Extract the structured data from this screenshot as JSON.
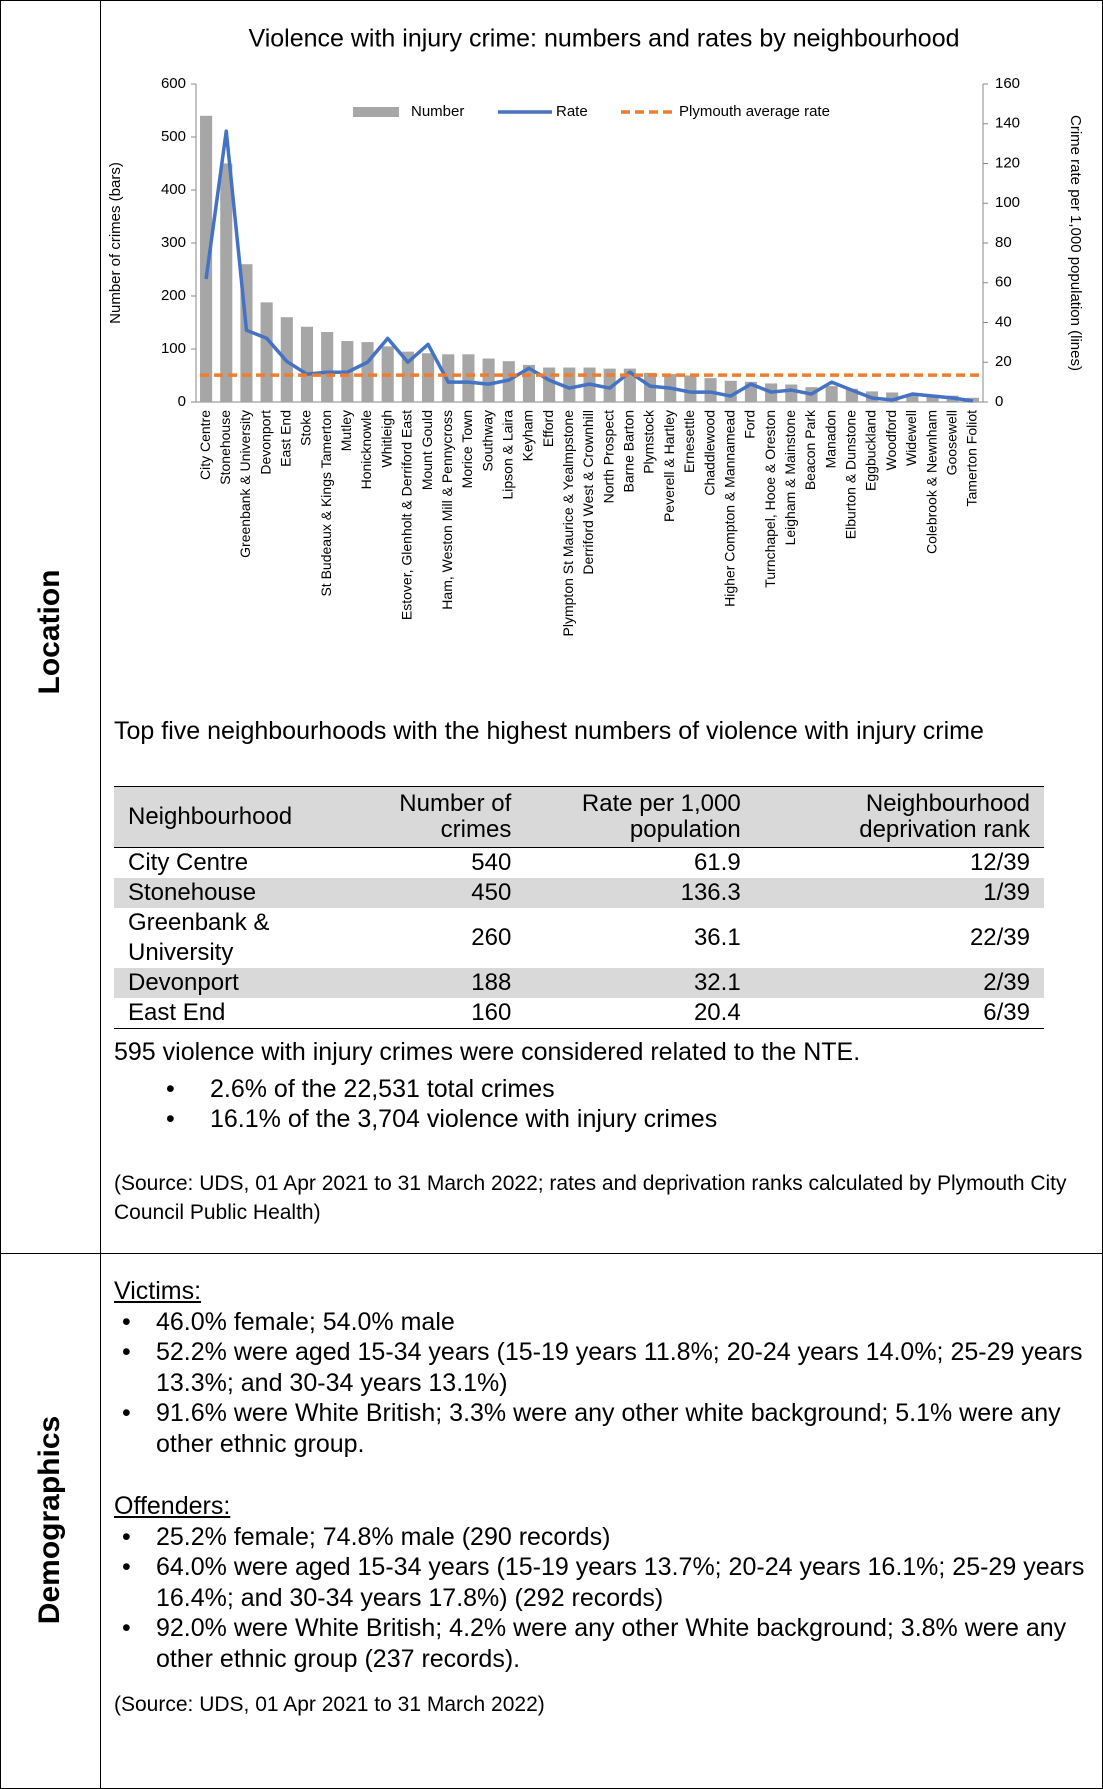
{
  "location": {
    "label": "Location",
    "table_title": "Top five neighbourhoods with the highest numbers of violence with injury crime",
    "table": {
      "header": [
        "Neighbourhood",
        "Number of crimes",
        "Rate per 1,000 population",
        "Neighbourhood deprivation rank"
      ],
      "rows": [
        [
          "City Centre",
          540,
          61.9,
          "12/39"
        ],
        [
          "Stonehouse",
          450,
          136.3,
          "1/39"
        ],
        [
          "Greenbank & University",
          260,
          36.1,
          "22/39"
        ],
        [
          "Devonport",
          188,
          32.1,
          "2/39"
        ],
        [
          "East End",
          160,
          20.4,
          "6/39"
        ]
      ]
    },
    "nte": {
      "text": "595 violence with injury crimes were considered related to the NTE.",
      "bullets": [
        "2.6% of the 22,531 total crimes",
        "16.1% of the 3,704 violence with injury crimes"
      ]
    },
    "source": "(Source: UDS, 01 Apr 2021 to 31 March 2022; rates and deprivation ranks calculated by Plymouth City Council Public Health)"
  },
  "demographics": {
    "label": "Demographics",
    "victims": {
      "heading": "Victims:",
      "bullets": [
        "46.0% female; 54.0% male",
        "52.2% were aged 15-34 years (15-19 years 11.8%; 20-24 years 14.0%; 25-29 years 13.3%; and 30-34 years 13.1%)",
        "91.6% were White British; 3.3% were any other white background; 5.1% were any other ethnic group."
      ]
    },
    "offenders": {
      "heading": "Offenders:",
      "bullets": [
        "25.2% female; 74.8% male (290 records)",
        "64.0% were aged 15-34 years (15-19 years 13.7%; 20-24 years 16.1%; 25-29 years 16.4%; and 30-34 years 17.8%) (292 records)",
        "92.0% were White British; 4.2% were any other White background; 3.8% were any other ethnic group (237 records)."
      ]
    },
    "source": "(Source: UDS, 01 Apr 2021 to 31 March 2022)"
  },
  "chart_data": {
    "type": "combo",
    "title": "Violence with injury crime: numbers and rates by neighbourhood",
    "y_label": "Number of crimes (bars)",
    "y2_label": "Crime rate per 1,000 population (lines)",
    "categories": [
      "City Centre",
      "Stonehouse",
      "Greenbank & University",
      "Devonport",
      "East End",
      "Stoke",
      "St Budeaux & Kings Tamerton",
      "Mutley",
      "Honicknowle",
      "Whitleigh",
      "Estover, Glenholt & Derriford East",
      "Mount Gould",
      "Ham, Weston Mill & Pennycross",
      "Morice Town",
      "Southway",
      "Lipson & Laira",
      "Keyham",
      "Efford",
      "Plympton St Maurice & Yealmpstone",
      "Derriford West & Crownhill",
      "North Prospect",
      "Barne Barton",
      "Plymstock",
      "Peverell & Hartley",
      "Ernesettle",
      "Chaddlewood",
      "Higher Compton & Mannamead",
      "Ford",
      "Turnchapel, Hooe & Oreston",
      "Leigham & Mainstone",
      "Beacon Park",
      "Manadon",
      "Elburton & Dunstone",
      "Eggbuckland",
      "Woodford",
      "Widewell",
      "Colebrook & Newnham",
      "Goosewell",
      "Tamerton Foliot"
    ],
    "series": [
      {
        "name": "Number",
        "type": "bar",
        "color": "#a6a6a6",
        "values": [
          540,
          450,
          260,
          188,
          160,
          142,
          132,
          115,
          113,
          105,
          95,
          92,
          90,
          90,
          82,
          77,
          70,
          65,
          65,
          65,
          63,
          63,
          55,
          53,
          50,
          45,
          40,
          38,
          35,
          33,
          28,
          30,
          25,
          20,
          18,
          15,
          12,
          12,
          8
        ]
      },
      {
        "name": "Rate",
        "type": "line",
        "axis": "y2",
        "color": "#4472c4",
        "values": [
          61.9,
          136.3,
          36.1,
          32.1,
          20.4,
          14,
          15,
          15,
          20,
          32,
          20,
          29,
          10,
          10,
          9,
          11,
          17,
          11,
          7,
          9,
          7,
          15,
          8,
          7,
          5,
          5,
          3,
          9,
          5,
          6,
          4,
          10,
          6,
          2,
          1,
          4,
          3,
          2,
          0.5
        ]
      },
      {
        "name": "Plymouth average rate",
        "type": "hline",
        "axis": "y2",
        "color": "#ed7d31",
        "value": 13.5
      }
    ],
    "ylim": [
      0,
      600
    ],
    "yticks": [
      0,
      100,
      200,
      300,
      400,
      500,
      600
    ],
    "y2lim": [
      0,
      160
    ],
    "y2ticks": [
      0,
      20,
      40,
      60,
      80,
      100,
      120,
      140,
      160
    ],
    "legend": "top"
  }
}
